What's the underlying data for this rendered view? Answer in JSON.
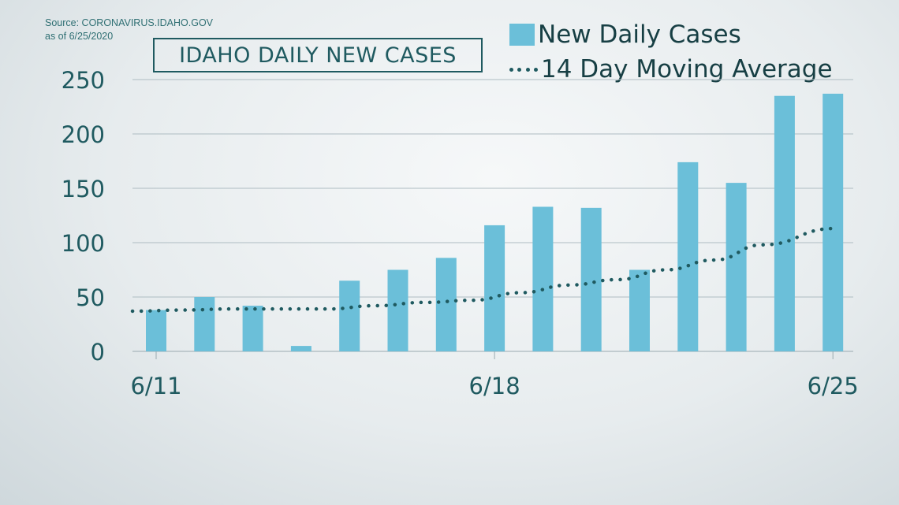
{
  "source": {
    "line1": "Source: CORONAVIRUS.IDAHO.GOV",
    "line2": "as of 6/25/2020"
  },
  "colors": {
    "bar": "#6bbfd9",
    "average": "#1f5a60",
    "grid": "#aebcc2",
    "text": "#1f5a60"
  },
  "chart_data": {
    "type": "bar",
    "title": "IDAHO DAILY NEW CASES",
    "x_tick_labels": [
      "6/11",
      "6/18",
      "6/25"
    ],
    "x_tick_indices": [
      0,
      7,
      14
    ],
    "ylim": [
      0,
      250
    ],
    "yticks": [
      0,
      50,
      100,
      150,
      200,
      250
    ],
    "grid": true,
    "legend_position": "top-right",
    "series": [
      {
        "name": "New Daily Cases",
        "type": "bar",
        "values": [
          38,
          50,
          42,
          5,
          65,
          75,
          86,
          116,
          133,
          132,
          75,
          174,
          155,
          235,
          237
        ]
      },
      {
        "name": "14 Day Moving Average",
        "type": "line",
        "style": "dotted",
        "values": [
          37,
          38,
          39,
          39,
          39,
          42,
          45,
          47,
          54,
          61,
          66,
          75,
          84,
          98,
          113
        ]
      }
    ]
  }
}
